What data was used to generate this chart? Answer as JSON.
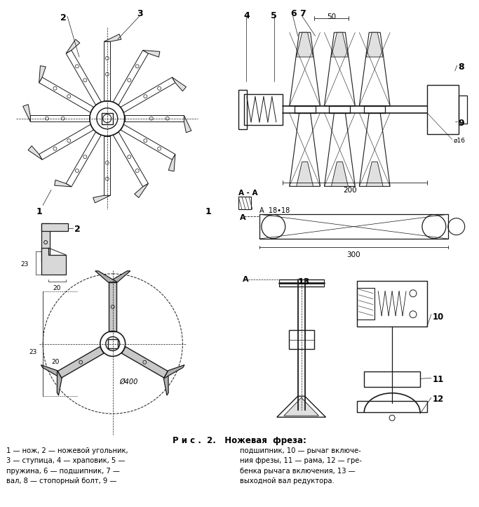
{
  "bg_color": "#f5f5f0",
  "line_color": "#1a1a1a",
  "fig_width": 6.83,
  "fig_height": 7.22,
  "title": "Р и с .  2.   Ножевая  фреза:",
  "cap1l": "1 — нож, 2 — ножевой угольник,",
  "cap2l": "3 — ступица, 4 — храповик, 5 —",
  "cap3l": "пружина, 6 — подшипник, 7 —",
  "cap4l": "вал, 8 — стопорный болт, 9 —",
  "cap1r": "подшипник, 10 — рычаг включе-",
  "cap2r": "ния фрезы, 11 — рама, 12 — гре-",
  "cap3r": "бенка рычага включения, 13 —",
  "cap4r": "выходной вал редуктора."
}
